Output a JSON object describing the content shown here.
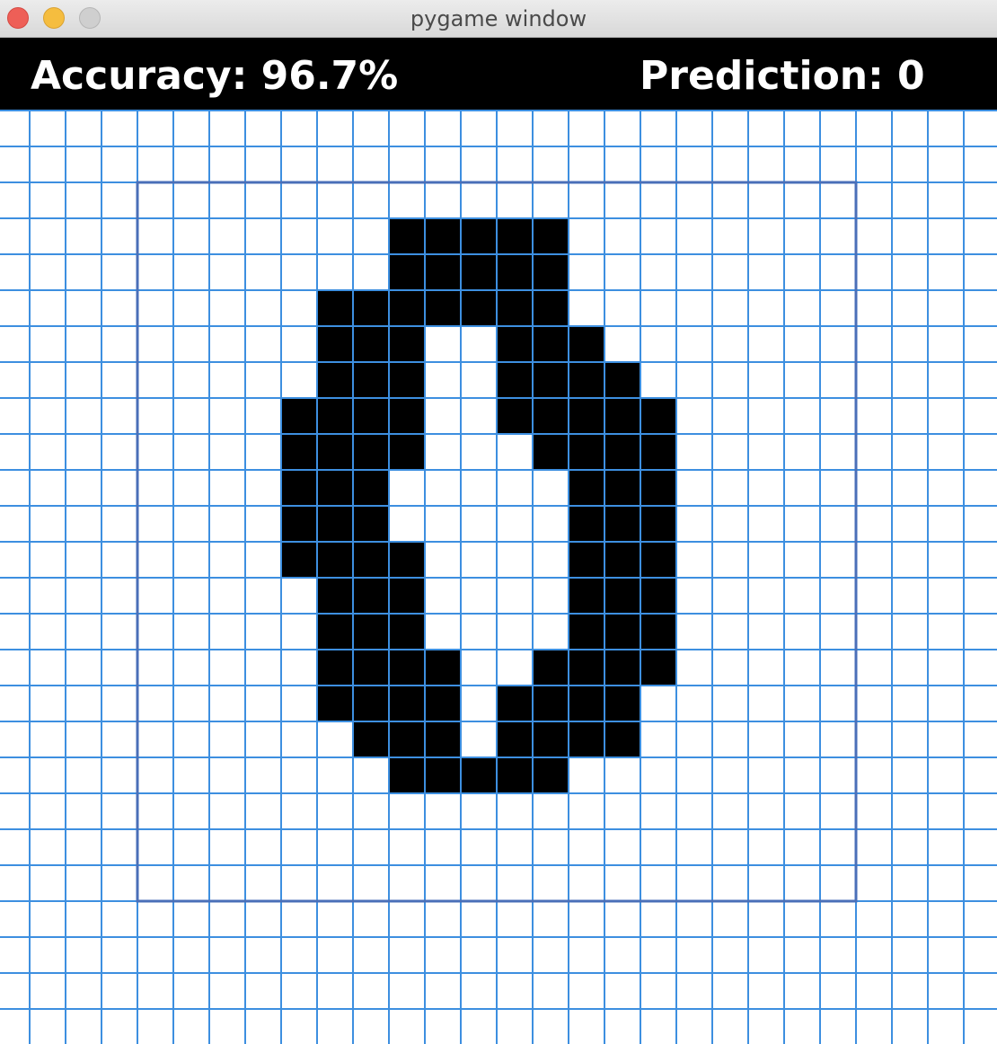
{
  "window": {
    "title": "pygame window"
  },
  "hud": {
    "accuracy_label": "Accuracy: 96.7%",
    "prediction_label": "Prediction: 0"
  },
  "drawing": {
    "grid_color": "#3d8fe0",
    "frame_color": "#4a6fb8",
    "ink_color": "#000000",
    "background_color": "#ffffff",
    "rows": [
      "",
      "",
      "",
      "11:5",
      "11:5",
      "9:7",
      "9:3,14:3",
      "9:3,14:4",
      "8:4,14:1,15:4",
      "8:4,15:4",
      "8:3,16:3",
      "8:3,16:3",
      "8:4,16:3",
      "9:3,16:3",
      "9:3,16:3",
      "9:4,15:4",
      "9:4,14:4",
      "10:3,14:4",
      "11:5",
      "",
      "",
      ""
    ]
  }
}
